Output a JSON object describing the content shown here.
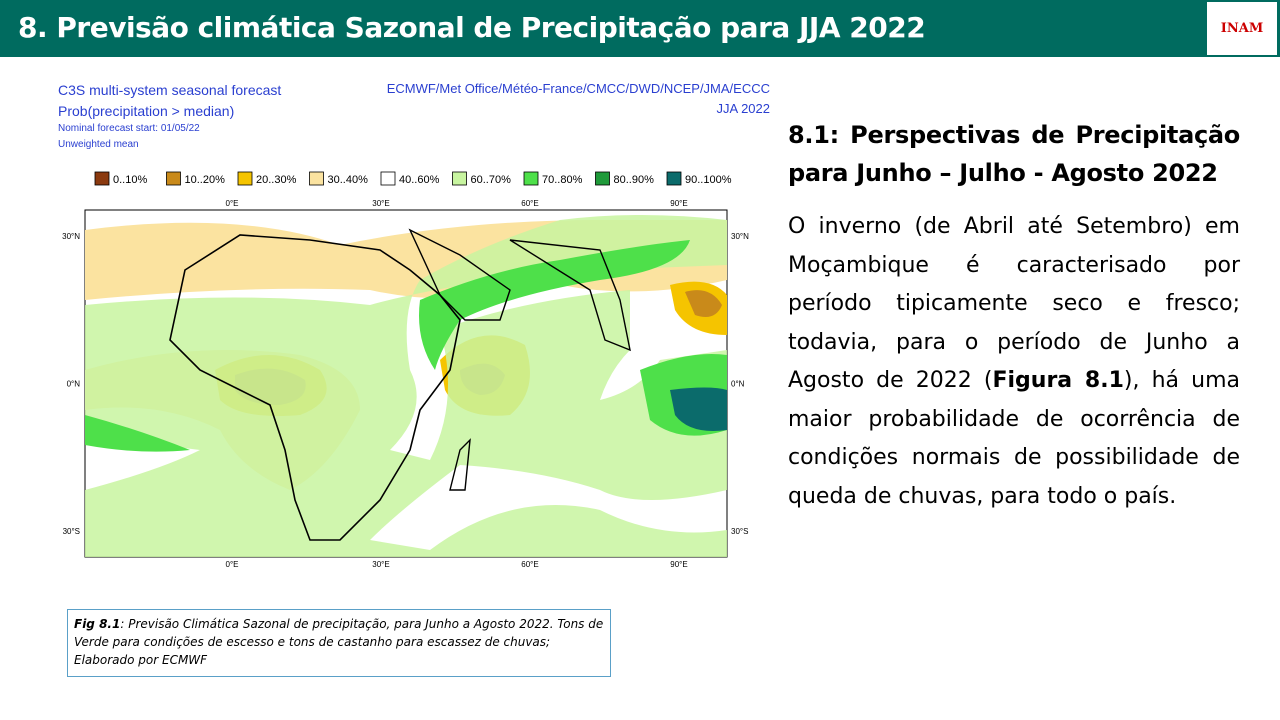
{
  "header": {
    "title": "8. Previsão climática Sazonal de Precipitação para JJA 2022",
    "logo": "INAM"
  },
  "figure": {
    "title_lines": [
      "C3S multi-system seasonal forecast",
      "Prob(precipitation > median)"
    ],
    "subtitle_lines": [
      "Nominal forecast start: 01/05/22",
      "Unweighted mean"
    ],
    "source": "ECMWF/Met Office/Météo-France/CMCC/DWD/NCEP/JMA/ECCC",
    "period": "JJA 2022",
    "legend": [
      {
        "label": "0..10%",
        "color": "#8b3a0f"
      },
      {
        "label": "10..20%",
        "color": "#c98a1a"
      },
      {
        "label": "20..30%",
        "color": "#f5c400"
      },
      {
        "label": "30..40%",
        "color": "#fbe3a0"
      },
      {
        "label": "40..60%",
        "color": "#ffffff"
      },
      {
        "label": "60..70%",
        "color": "#c8f5a0"
      },
      {
        "label": "70..80%",
        "color": "#4ee04a"
      },
      {
        "label": "80..90%",
        "color": "#1f9a3a"
      },
      {
        "label": "90..100%",
        "color": "#0b6b6b"
      }
    ],
    "lon_labels": [
      "0°E",
      "30°E",
      "60°E",
      "90°E"
    ],
    "lat_labels": [
      "30°N",
      "0°N",
      "30°S"
    ]
  },
  "caption": {
    "label": "Fig 8.1",
    "text": ": Previsão Climática Sazonal de precipitação, para Junho a Agosto 2022. Tons de Verde para condições de escesso e tons de castanho para escassez de chuvas; Elaborado por ECMWF"
  },
  "section": {
    "heading": "8.1: Perspectivas de Precipitação para Junho – Julho - Agosto 2022",
    "paragraph": {
      "before": "O inverno (de Abril até Setembro) em Moçambique é caracterisado por período tipicamente seco e fresco; todavia, para o período de Junho a Agosto de 2022 (",
      "bold": "Figura 8.1",
      "after": "), há uma maior probabilidade de ocorrência de condições normais de possibilidade de queda de chuvas, para todo o país."
    }
  }
}
